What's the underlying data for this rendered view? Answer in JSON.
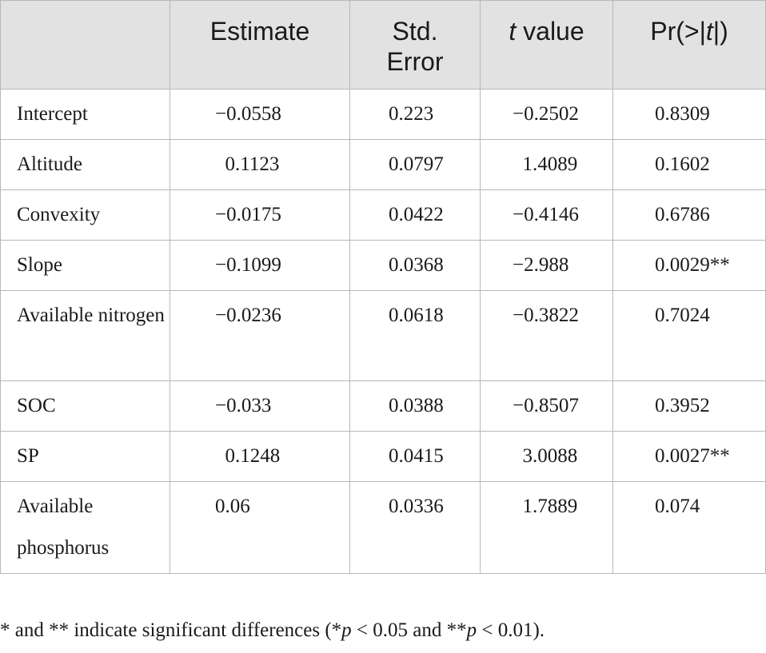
{
  "table": {
    "headers": {
      "row_label": "",
      "estimate": "Estimate",
      "std_error_line1": "Std.",
      "std_error_line2": "Error",
      "t_value_t": "t",
      "t_value_rest": " value",
      "pr_prefix": "Pr(>|",
      "pr_t": "t",
      "pr_suffix": "|)"
    },
    "rows": [
      {
        "label": "Intercept",
        "estimate": "−0.0558",
        "std_error": "0.223",
        "t_value": "−0.2502",
        "pr": "0.8309"
      },
      {
        "label": "Altitude",
        "estimate": "  0.1123",
        "std_error": "0.0797",
        "t_value": "  1.4089",
        "pr": "0.1602"
      },
      {
        "label": "Convexity",
        "estimate": "−0.0175",
        "std_error": "0.0422",
        "t_value": "−0.4146",
        "pr": "0.6786"
      },
      {
        "label": "Slope",
        "estimate": "−0.1099",
        "std_error": "0.0368",
        "t_value": "−2.988",
        "pr": "0.0029**"
      },
      {
        "label": "Available nitrogen",
        "estimate": "−0.0236",
        "std_error": "0.0618",
        "t_value": "−0.3822",
        "pr": "0.7024"
      },
      {
        "label": "SOC",
        "estimate": "−0.033",
        "std_error": "0.0388",
        "t_value": "−0.8507",
        "pr": "0.3952"
      },
      {
        "label": "SP",
        "estimate": "  0.1248",
        "std_error": "0.0415",
        "t_value": "  3.0088",
        "pr": "0.0027**"
      },
      {
        "label": "Available phosphorus",
        "estimate": "0.06",
        "std_error": "0.0336",
        "t_value": "  1.7889",
        "pr": "0.074"
      }
    ]
  },
  "footnote": {
    "part1": "* and ** indicate significant differences (*",
    "p1": "p",
    "part2": " < 0.05 and **",
    "p2": "p",
    "part3": " < 0.01)."
  }
}
